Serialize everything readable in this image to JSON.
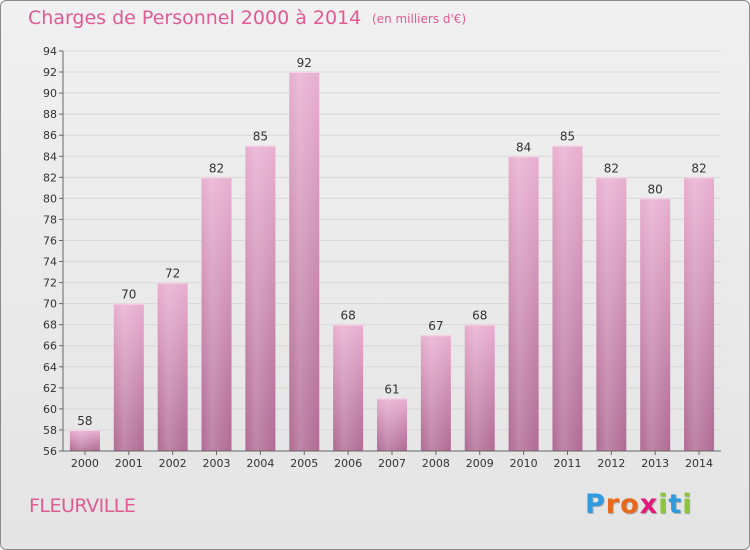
{
  "header": {
    "title": "Charges de Personnel 2000 à 2014",
    "subtitle": "(en milliers d'€)"
  },
  "footer": {
    "commune": "FLEURVILLE",
    "logo_letters": [
      "P",
      "r",
      "o",
      "x",
      "i",
      "t",
      "i"
    ],
    "logo_colors": [
      "#2e9be0",
      "#e8681c",
      "#e8681c",
      "#e0197a",
      "#8cc63f",
      "#2e9be0",
      "#8cc63f"
    ]
  },
  "colors": {
    "bar_top": "#e8aed0",
    "bar_bottom": "#b06a94",
    "grid": "#d8d8d8",
    "axis": "#666666",
    "text": "#333333",
    "accent": "#e05a94"
  },
  "chart_data": {
    "type": "bar",
    "title": "Charges de Personnel 2000 à 2014",
    "subtitle": "(en milliers d'€)",
    "categories": [
      "2000",
      "2001",
      "2002",
      "2003",
      "2004",
      "2005",
      "2006",
      "2007",
      "2008",
      "2009",
      "2010",
      "2011",
      "2012",
      "2013",
      "2014"
    ],
    "values": [
      58,
      70,
      72,
      82,
      85,
      92,
      68,
      61,
      67,
      68,
      84,
      85,
      82,
      80,
      82
    ],
    "ylim": [
      56,
      94
    ],
    "yticks": [
      56,
      58,
      60,
      62,
      64,
      66,
      68,
      70,
      72,
      74,
      76,
      78,
      80,
      82,
      84,
      86,
      88,
      90,
      92,
      94
    ],
    "grid": true,
    "data_labels": true
  }
}
